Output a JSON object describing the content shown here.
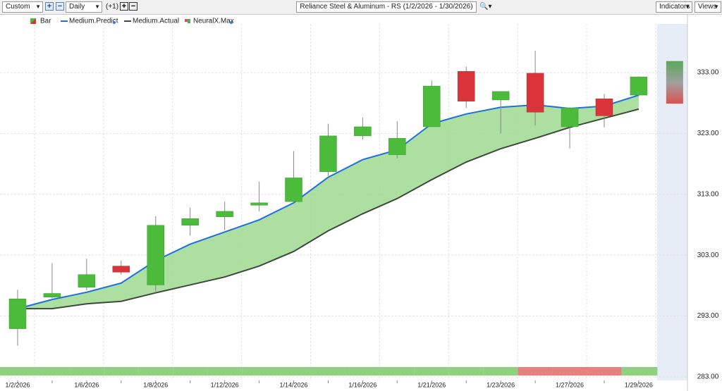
{
  "toolbar": {
    "range": "Custom",
    "period": "Daily",
    "offset": "(+1)",
    "title": "Reliance Steel & Aluminum - RS (1/2/2026 - 1/30/2026)",
    "indicators": "Indicators",
    "views": "Views"
  },
  "chart_data": {
    "type": "candlestick",
    "categories": [
      "1/2/2026",
      null,
      "1/6/2026",
      null,
      "1/8/2026",
      null,
      "1/12/2026",
      null,
      "1/14/2026",
      null,
      "1/16/2026",
      null,
      "1/21/2026",
      null,
      "1/23/2026",
      null,
      "1/27/2026",
      null,
      "1/29/2026"
    ],
    "ylim": [
      282.4,
      341
    ],
    "yticks": [
      {
        "value": 283,
        "label": "283.00"
      },
      {
        "value": 293,
        "label": "293.00"
      },
      {
        "value": 303,
        "label": "303.00"
      },
      {
        "value": 313,
        "label": "313.00"
      },
      {
        "value": 323,
        "label": "323.00"
      },
      {
        "value": 333,
        "label": "333.00"
      }
    ],
    "grid": true,
    "series": [
      {
        "name": "Bar",
        "up_color": "#4cbb3c",
        "down_color": "#d9343a",
        "open": [
          290.9,
          296.1,
          297.7,
          301.2,
          298.1,
          307.9,
          309.3,
          311.2,
          311.8,
          316.7,
          322.6,
          319.5,
          324.1,
          333.2,
          328.5,
          332.9,
          324.1,
          328.7,
          329.3
        ],
        "high": [
          297.3,
          301.7,
          302.4,
          302.1,
          309.4,
          310.8,
          311.8,
          315.1,
          320.1,
          324.6,
          325.6,
          325.0,
          331.7,
          334.0,
          329.9,
          336.6,
          327.3,
          329.5,
          332.4
        ],
        "low": [
          288.1,
          295.9,
          297.2,
          299.8,
          297.0,
          306.2,
          307.1,
          310.2,
          311.6,
          316.0,
          322.0,
          318.9,
          324.1,
          327.2,
          323.0,
          324.3,
          320.5,
          324.0,
          329.2
        ],
        "close": [
          295.8,
          296.7,
          299.8,
          300.2,
          307.9,
          309.0,
          310.2,
          311.6,
          315.7,
          322.6,
          324.1,
          322.2,
          330.8,
          328.3,
          329.9,
          326.5,
          327.2,
          325.9,
          332.3
        ]
      },
      {
        "name": "Medium.Predict",
        "color": "#1e6fe6",
        "values": [
          294.2,
          295.7,
          296.9,
          298.4,
          302.1,
          304.8,
          306.8,
          308.8,
          311.6,
          315.8,
          318.7,
          320.3,
          324.6,
          326.2,
          327.3,
          327.7,
          327.1,
          327.5,
          329.3
        ]
      },
      {
        "name": "Medium.Actual",
        "color": "#3b4a3b",
        "values": [
          294.2,
          294.2,
          295.0,
          295.4,
          296.8,
          298.1,
          299.4,
          301.2,
          303.6,
          307.0,
          309.8,
          312.3,
          315.4,
          318.3,
          320.5,
          322.2,
          324.0,
          325.5,
          327.0
        ]
      }
    ],
    "forecast": {
      "name": "NeuralX.Max",
      "high": 334.9,
      "low": 327.9,
      "colors": [
        "#5aa85a",
        "#d9534f"
      ]
    },
    "area_color": "#a3dc96",
    "strip_colors": [
      "#8fd17f",
      "#8fd17f",
      "#8fd17f",
      "#8fd17f",
      "#8fd17f",
      "#8fd17f",
      "#8fd17f",
      "#8fd17f",
      "#8fd17f",
      "#8fd17f",
      "#8fd17f",
      "#8fd17f",
      "#8fd17f",
      "#8fd17f",
      "#8fd17f",
      "#e98080",
      "#e98080",
      "#e98080",
      "#8fd17f"
    ]
  }
}
